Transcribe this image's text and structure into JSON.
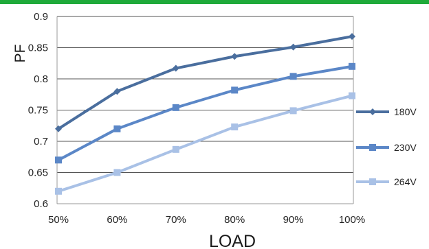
{
  "colors": {
    "top_bar": "#1faa3a",
    "axis": "#9a9a9a",
    "grid": "#555555"
  },
  "chart_data": {
    "type": "line",
    "categories": [
      "50%",
      "60%",
      "70%",
      "80%",
      "90%",
      "100%"
    ],
    "series": [
      {
        "name": "180V",
        "color": "#4a6e9e",
        "marker": "diamond",
        "values": [
          0.72,
          0.78,
          0.817,
          0.836,
          0.851,
          0.868
        ]
      },
      {
        "name": "230V",
        "color": "#5b87c7",
        "marker": "square",
        "values": [
          0.67,
          0.72,
          0.754,
          0.782,
          0.804,
          0.82
        ]
      },
      {
        "name": "264V",
        "color": "#a9c1e6",
        "marker": "square",
        "values": [
          0.62,
          0.65,
          0.687,
          0.723,
          0.749,
          0.773
        ]
      }
    ],
    "ylim": [
      0.6,
      0.9
    ],
    "yticks": [
      0.6,
      0.65,
      0.7,
      0.75,
      0.8,
      0.85,
      0.9
    ],
    "ytick_labels": [
      "0.6",
      "0.65",
      "0.7",
      "0.75",
      "0.8",
      "0.85",
      "0.9"
    ],
    "xlabel": "LOAD",
    "ylabel": "PF",
    "grid": "horizontal",
    "legend": "right"
  }
}
